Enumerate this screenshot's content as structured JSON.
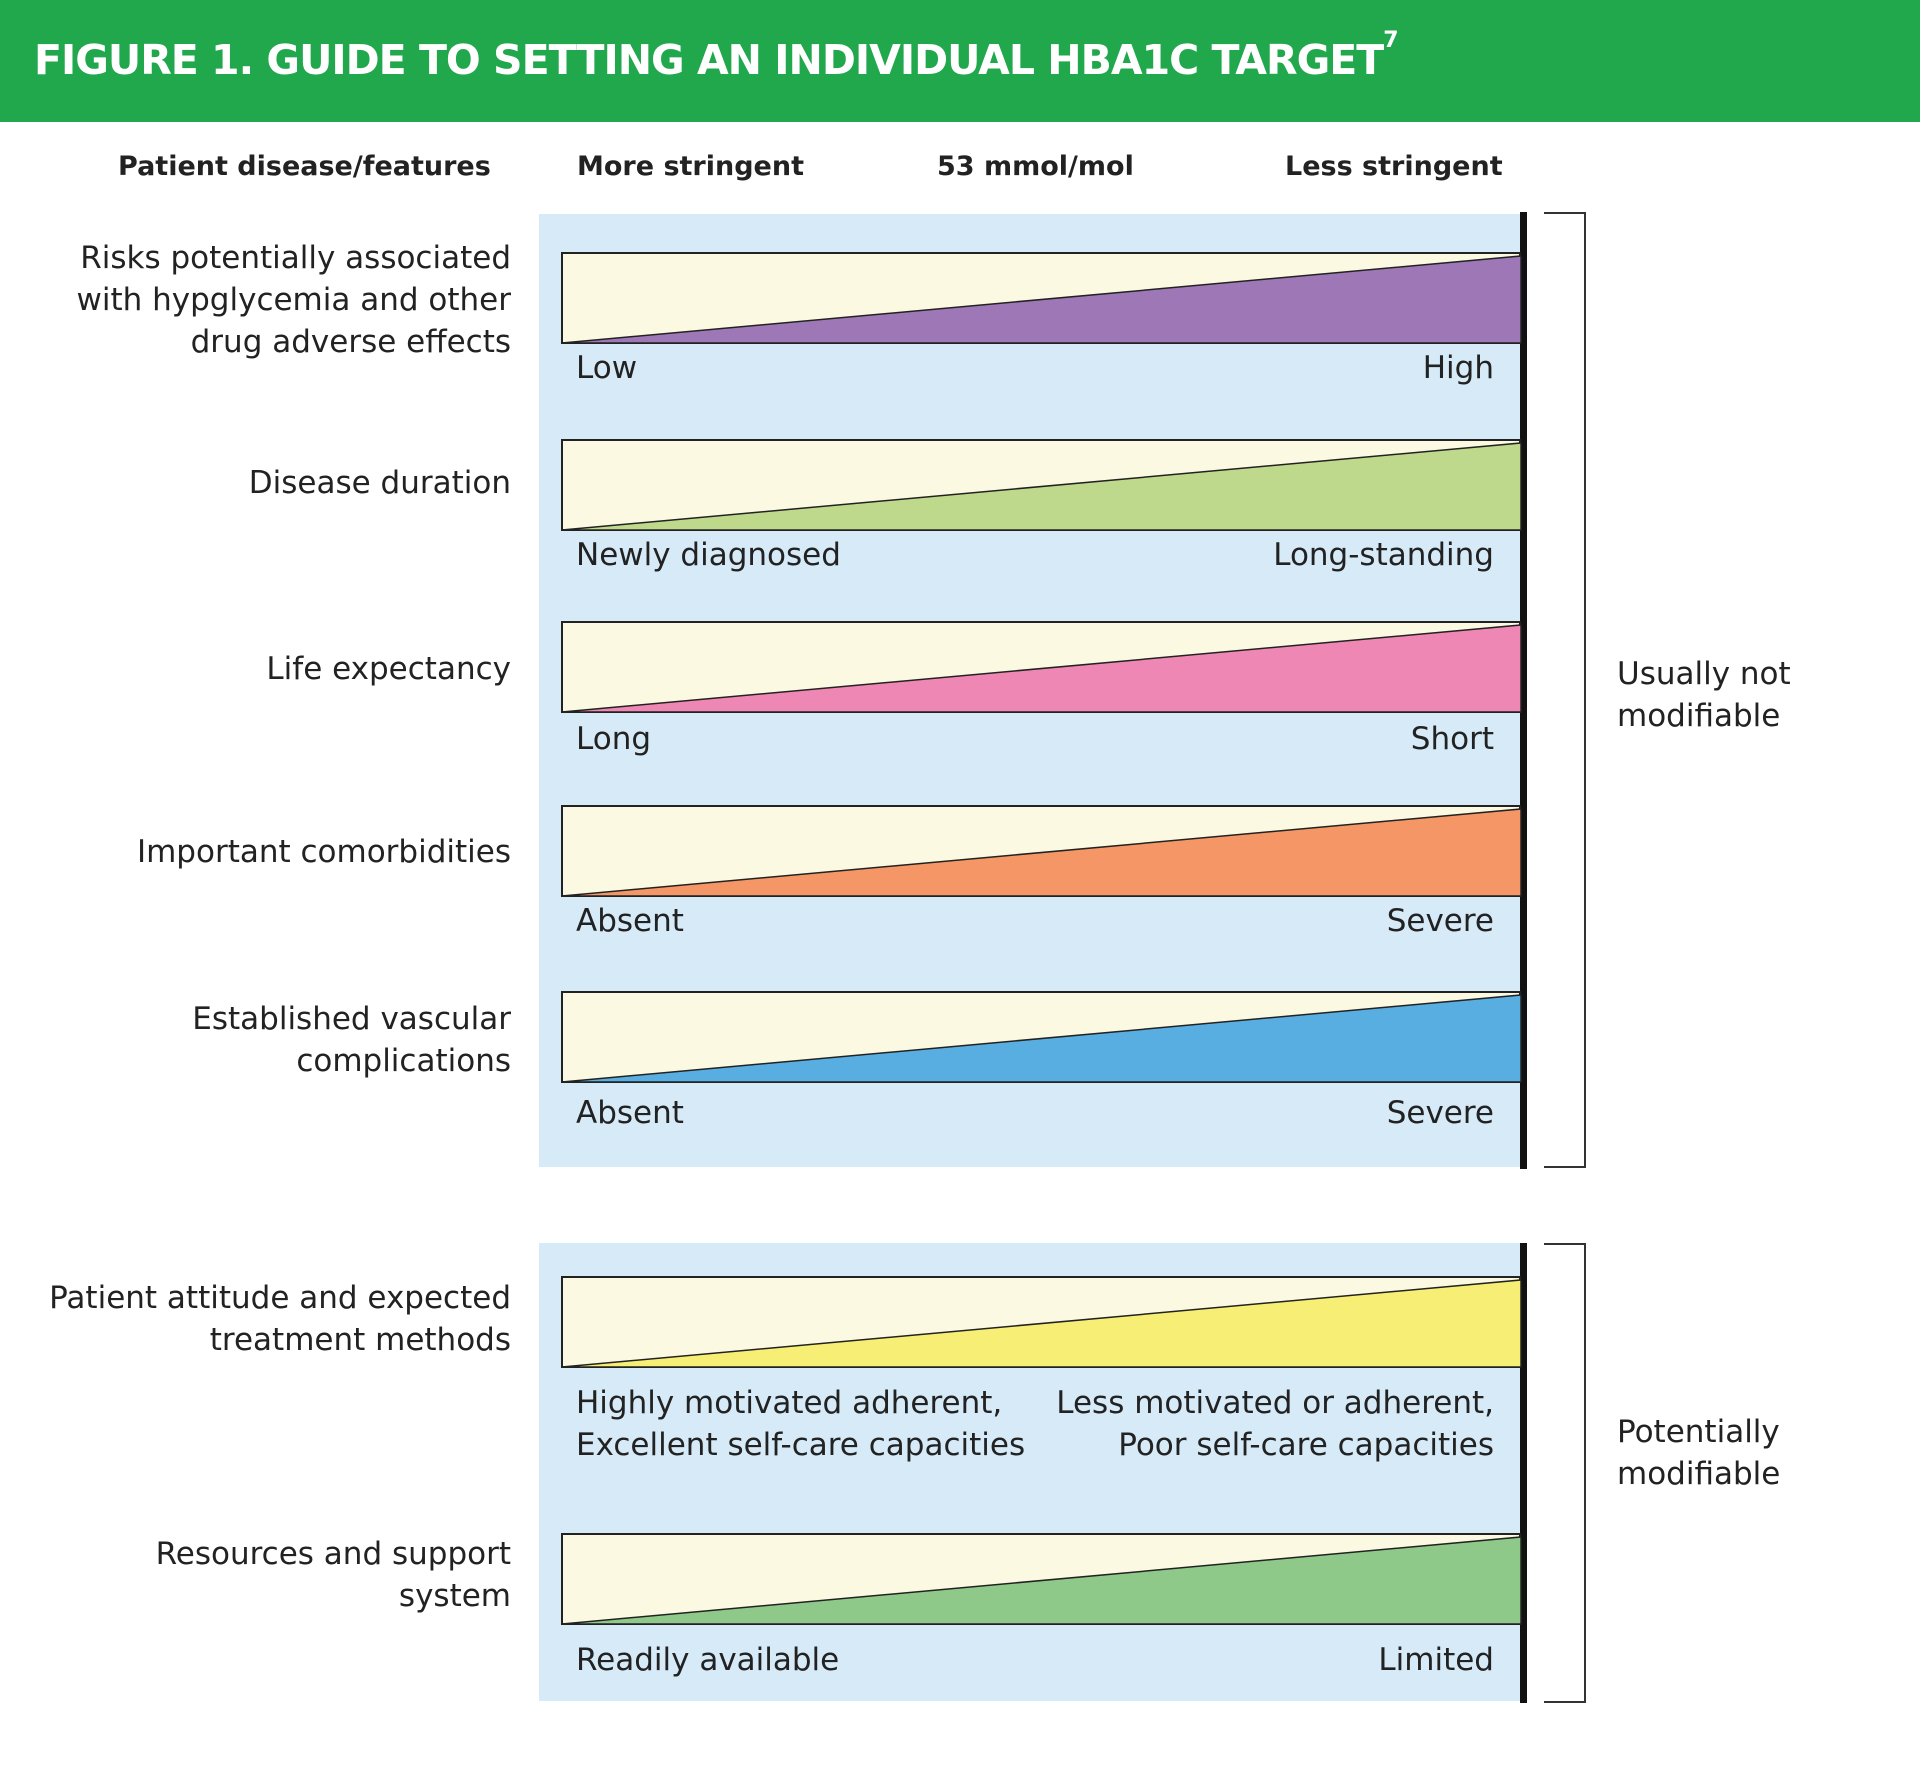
{
  "figure": {
    "title": "FIGURE 1. GUIDE TO SETTING AN INDIVIDUAL HBA1C TARGET",
    "title_sup": "7",
    "header_color": "#21a84d"
  },
  "columns": {
    "features": "Patient disease/features",
    "more": "More stringent",
    "target": "53 mmol/mol",
    "less": "Less stringent"
  },
  "groups": [
    {
      "label_lines": [
        "Usually not",
        "modifiable"
      ]
    },
    {
      "label_lines": [
        "Potentially",
        "modifiable"
      ]
    }
  ],
  "rows": [
    {
      "label_lines": [
        "Risks potentially associated",
        "with hypglycemia and other",
        "drug adverse effects"
      ],
      "low": [
        "Low"
      ],
      "high": [
        "High"
      ],
      "color": "#9e77b6"
    },
    {
      "label_lines": [
        "Disease duration"
      ],
      "low": [
        "Newly diagnosed"
      ],
      "high": [
        "Long-standing"
      ],
      "color": "#bed98c"
    },
    {
      "label_lines": [
        "Life expectancy"
      ],
      "low": [
        "Long"
      ],
      "high": [
        "Short"
      ],
      "color": "#ef87b4"
    },
    {
      "label_lines": [
        "Important comorbidities"
      ],
      "low": [
        "Absent"
      ],
      "high": [
        "Severe"
      ],
      "color": "#f59666"
    },
    {
      "label_lines": [
        "Established vascular",
        "complications"
      ],
      "low": [
        "Absent"
      ],
      "high": [
        "Severe"
      ],
      "color": "#58aee0"
    },
    {
      "label_lines": [
        "Patient attitude and expected",
        "treatment methods"
      ],
      "low": [
        "Highly motivated adherent,",
        "Excellent self-care capacities"
      ],
      "high": [
        "Less motivated or adherent,",
        "Poor self-care capacities"
      ],
      "color": "#f7ef75"
    },
    {
      "label_lines": [
        "Resources and support",
        "system"
      ],
      "low": [
        "Readily available"
      ],
      "high": [
        "Limited"
      ],
      "color": "#8ec98a"
    }
  ],
  "bar_background": "#fbf9e2",
  "panel_background": "#d6eaf7"
}
